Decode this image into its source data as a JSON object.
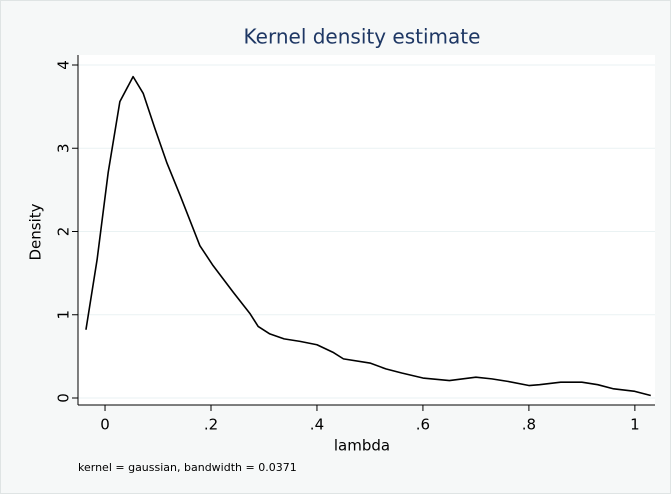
{
  "chart_data": {
    "type": "line",
    "title": "Kernel density estimate",
    "x_label": "lambda",
    "y_label": "Density",
    "note": "kernel = gaussian, bandwidth = 0.0371",
    "series": [
      {
        "color": "#000000",
        "x": [
          -0.036,
          -0.015,
          0.006,
          0.028,
          0.053,
          0.072,
          0.094,
          0.117,
          0.142,
          0.179,
          0.204,
          0.242,
          0.274,
          0.289,
          0.311,
          0.338,
          0.368,
          0.4,
          0.43,
          0.45,
          0.5,
          0.53,
          0.56,
          0.6,
          0.65,
          0.7,
          0.73,
          0.76,
          0.8,
          0.82,
          0.86,
          0.9,
          0.93,
          0.96,
          1.0,
          1.03
        ],
        "values": [
          0.82,
          1.66,
          2.71,
          3.56,
          3.86,
          3.66,
          3.24,
          2.82,
          2.43,
          1.83,
          1.59,
          1.27,
          1.01,
          0.86,
          0.77,
          0.71,
          0.68,
          0.64,
          0.55,
          0.47,
          0.42,
          0.35,
          0.3,
          0.24,
          0.21,
          0.25,
          0.23,
          0.2,
          0.15,
          0.16,
          0.19,
          0.19,
          0.16,
          0.11,
          0.08,
          0.03
        ]
      }
    ],
    "xlim": [
      -0.051,
      1.038
    ],
    "ylim": [
      -0.084,
      4.12
    ],
    "xticks": [
      0,
      {
        "value": 0.2,
        "label": ".2"
      },
      {
        "value": 0.4,
        "label": ".4"
      },
      {
        "value": 0.6,
        "label": ".6"
      },
      {
        "value": 0.8,
        "label": ".8"
      },
      1
    ],
    "yticks": [
      0,
      1,
      2,
      3,
      4
    ],
    "grid": true
  }
}
